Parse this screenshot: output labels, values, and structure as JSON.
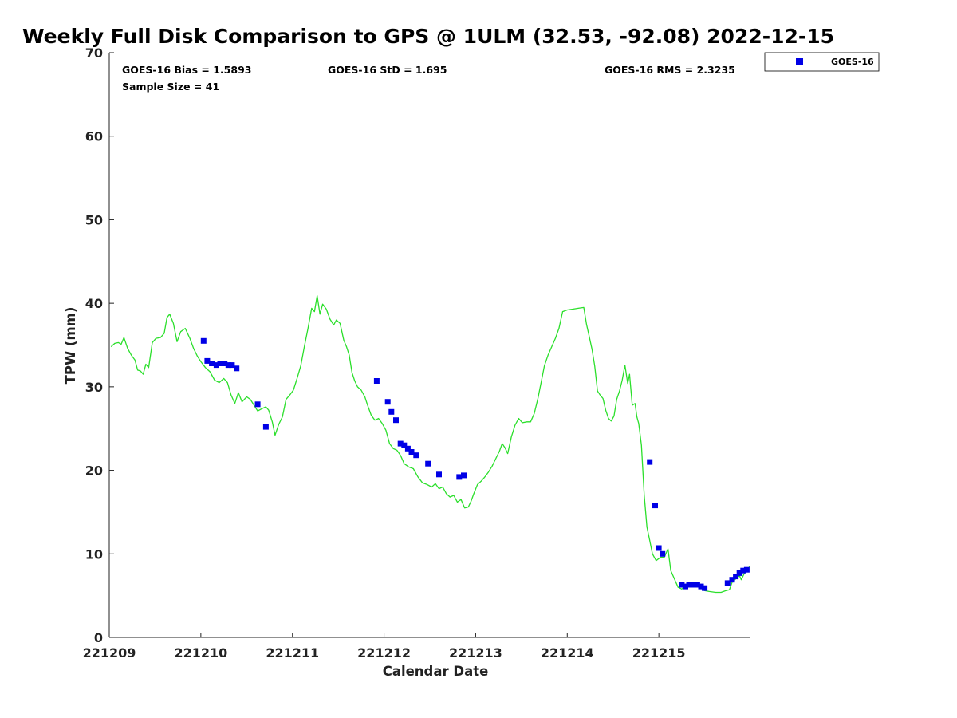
{
  "chart_data": {
    "type": "scatter",
    "title": "Weekly Full Disk Comparison to GPS @ 1ULM (32.53, -92.08) 2022-12-15",
    "xlabel": "Calendar Date",
    "ylabel": "TPW (mm)",
    "xlim": [
      0,
      7
    ],
    "ylim": [
      0,
      70
    ],
    "x_tick_values": [
      0,
      1,
      2,
      3,
      4,
      5,
      6
    ],
    "x_tick_labels": [
      "221209",
      "221210",
      "221211",
      "221212",
      "221213",
      "221214",
      "221215"
    ],
    "y_ticks": [
      0,
      10,
      20,
      30,
      40,
      50,
      60,
      70
    ],
    "grid": false,
    "legend_position": "outside-top-right",
    "stats": {
      "bias": "GOES-16 Bias = 1.5893",
      "std": "GOES-16 StD = 1.695",
      "rms": "GOES-16 RMS = 2.3235",
      "sample": "Sample Size = 41"
    },
    "series": [
      {
        "name": "GOES-16",
        "kind": "scatter",
        "color": "#0000e6",
        "points": [
          [
            1.03,
            35.5
          ],
          [
            1.07,
            33.1
          ],
          [
            1.12,
            32.8
          ],
          [
            1.17,
            32.6
          ],
          [
            1.21,
            32.8
          ],
          [
            1.26,
            32.8
          ],
          [
            1.3,
            32.6
          ],
          [
            1.34,
            32.6
          ],
          [
            1.39,
            32.2
          ],
          [
            1.62,
            27.9
          ],
          [
            1.71,
            25.2
          ],
          [
            2.92,
            30.7
          ],
          [
            3.04,
            28.2
          ],
          [
            3.08,
            27.0
          ],
          [
            3.13,
            26.0
          ],
          [
            3.18,
            23.2
          ],
          [
            3.22,
            23.0
          ],
          [
            3.26,
            22.6
          ],
          [
            3.3,
            22.2
          ],
          [
            3.35,
            21.8
          ],
          [
            3.48,
            20.8
          ],
          [
            3.6,
            19.5
          ],
          [
            3.82,
            19.2
          ],
          [
            3.87,
            19.4
          ],
          [
            5.9,
            21.0
          ],
          [
            5.96,
            15.8
          ],
          [
            6.0,
            10.7
          ],
          [
            6.04,
            10.0
          ],
          [
            6.25,
            6.3
          ],
          [
            6.29,
            6.1
          ],
          [
            6.33,
            6.3
          ],
          [
            6.38,
            6.3
          ],
          [
            6.42,
            6.3
          ],
          [
            6.46,
            6.1
          ],
          [
            6.5,
            5.9
          ],
          [
            6.75,
            6.5
          ],
          [
            6.8,
            6.9
          ],
          [
            6.84,
            7.3
          ],
          [
            6.88,
            7.7
          ],
          [
            6.92,
            8.0
          ],
          [
            6.96,
            8.1
          ]
        ]
      },
      {
        "kind": "line",
        "color": "#2bdf2b",
        "points": [
          [
            0.02,
            34.8
          ],
          [
            0.06,
            35.2
          ],
          [
            0.1,
            35.3
          ],
          [
            0.13,
            35.1
          ],
          [
            0.16,
            35.9
          ],
          [
            0.2,
            34.6
          ],
          [
            0.24,
            33.8
          ],
          [
            0.28,
            33.2
          ],
          [
            0.31,
            32.0
          ],
          [
            0.34,
            31.9
          ],
          [
            0.37,
            31.5
          ],
          [
            0.4,
            32.7
          ],
          [
            0.43,
            32.3
          ],
          [
            0.47,
            35.3
          ],
          [
            0.51,
            35.8
          ],
          [
            0.56,
            35.9
          ],
          [
            0.6,
            36.4
          ],
          [
            0.63,
            38.3
          ],
          [
            0.66,
            38.7
          ],
          [
            0.7,
            37.6
          ],
          [
            0.74,
            35.4
          ],
          [
            0.78,
            36.6
          ],
          [
            0.83,
            37.0
          ],
          [
            0.88,
            35.8
          ],
          [
            0.92,
            34.6
          ],
          [
            0.96,
            33.7
          ],
          [
            1.0,
            33.0
          ],
          [
            1.05,
            32.3
          ],
          [
            1.1,
            31.8
          ],
          [
            1.15,
            30.8
          ],
          [
            1.2,
            30.5
          ],
          [
            1.25,
            31.0
          ],
          [
            1.29,
            30.5
          ],
          [
            1.33,
            29.0
          ],
          [
            1.37,
            28.0
          ],
          [
            1.41,
            29.3
          ],
          [
            1.45,
            28.2
          ],
          [
            1.5,
            28.8
          ],
          [
            1.54,
            28.5
          ],
          [
            1.58,
            27.8
          ],
          [
            1.62,
            27.1
          ],
          [
            1.67,
            27.4
          ],
          [
            1.71,
            27.6
          ],
          [
            1.74,
            27.2
          ],
          [
            1.78,
            25.8
          ],
          [
            1.81,
            24.2
          ],
          [
            1.85,
            25.5
          ],
          [
            1.89,
            26.4
          ],
          [
            1.93,
            28.5
          ],
          [
            1.97,
            29.0
          ],
          [
            2.01,
            29.6
          ],
          [
            2.05,
            31.0
          ],
          [
            2.09,
            32.5
          ],
          [
            2.13,
            34.8
          ],
          [
            2.17,
            37.0
          ],
          [
            2.21,
            39.4
          ],
          [
            2.24,
            39.0
          ],
          [
            2.27,
            40.9
          ],
          [
            2.3,
            38.7
          ],
          [
            2.33,
            39.9
          ],
          [
            2.37,
            39.3
          ],
          [
            2.41,
            38.1
          ],
          [
            2.45,
            37.4
          ],
          [
            2.48,
            38.0
          ],
          [
            2.52,
            37.6
          ],
          [
            2.56,
            35.6
          ],
          [
            2.59,
            34.8
          ],
          [
            2.62,
            33.8
          ],
          [
            2.65,
            31.7
          ],
          [
            2.68,
            30.7
          ],
          [
            2.71,
            30.0
          ],
          [
            2.75,
            29.6
          ],
          [
            2.79,
            28.8
          ],
          [
            2.82,
            27.8
          ],
          [
            2.86,
            26.6
          ],
          [
            2.9,
            26.0
          ],
          [
            2.94,
            26.2
          ],
          [
            2.98,
            25.6
          ],
          [
            3.02,
            24.8
          ],
          [
            3.06,
            23.2
          ],
          [
            3.1,
            22.6
          ],
          [
            3.14,
            22.4
          ],
          [
            3.18,
            21.8
          ],
          [
            3.22,
            20.8
          ],
          [
            3.27,
            20.4
          ],
          [
            3.32,
            20.2
          ],
          [
            3.37,
            19.2
          ],
          [
            3.42,
            18.5
          ],
          [
            3.47,
            18.3
          ],
          [
            3.52,
            18.0
          ],
          [
            3.56,
            18.4
          ],
          [
            3.6,
            17.8
          ],
          [
            3.64,
            18.0
          ],
          [
            3.68,
            17.2
          ],
          [
            3.72,
            16.8
          ],
          [
            3.76,
            17.0
          ],
          [
            3.8,
            16.2
          ],
          [
            3.84,
            16.5
          ],
          [
            3.88,
            15.5
          ],
          [
            3.92,
            15.6
          ],
          [
            3.95,
            16.3
          ],
          [
            3.98,
            17.2
          ],
          [
            4.02,
            18.3
          ],
          [
            4.06,
            18.7
          ],
          [
            4.1,
            19.2
          ],
          [
            4.14,
            19.8
          ],
          [
            4.18,
            20.5
          ],
          [
            4.22,
            21.4
          ],
          [
            4.26,
            22.3
          ],
          [
            4.29,
            23.2
          ],
          [
            4.32,
            22.7
          ],
          [
            4.35,
            22.0
          ],
          [
            4.39,
            24.0
          ],
          [
            4.43,
            25.4
          ],
          [
            4.47,
            26.2
          ],
          [
            4.51,
            25.7
          ],
          [
            4.56,
            25.8
          ],
          [
            4.6,
            25.8
          ],
          [
            4.64,
            26.8
          ],
          [
            4.68,
            28.6
          ],
          [
            4.72,
            30.8
          ],
          [
            4.75,
            32.5
          ],
          [
            4.79,
            33.8
          ],
          [
            4.83,
            34.8
          ],
          [
            4.87,
            35.8
          ],
          [
            4.91,
            37.0
          ],
          [
            4.95,
            39.0
          ],
          [
            5.0,
            39.2
          ],
          [
            5.06,
            39.3
          ],
          [
            5.12,
            39.4
          ],
          [
            5.18,
            39.5
          ],
          [
            5.21,
            37.5
          ],
          [
            5.24,
            36.0
          ],
          [
            5.27,
            34.5
          ],
          [
            5.3,
            32.5
          ],
          [
            5.33,
            29.5
          ],
          [
            5.36,
            29.0
          ],
          [
            5.39,
            28.6
          ],
          [
            5.42,
            27.2
          ],
          [
            5.45,
            26.2
          ],
          [
            5.48,
            25.9
          ],
          [
            5.51,
            26.5
          ],
          [
            5.54,
            28.5
          ],
          [
            5.57,
            29.5
          ],
          [
            5.6,
            30.8
          ],
          [
            5.63,
            32.6
          ],
          [
            5.66,
            30.4
          ],
          [
            5.68,
            31.5
          ],
          [
            5.71,
            27.8
          ],
          [
            5.74,
            28.0
          ],
          [
            5.76,
            26.4
          ],
          [
            5.78,
            25.6
          ],
          [
            5.81,
            23.0
          ],
          [
            5.84,
            17.0
          ],
          [
            5.87,
            13.2
          ],
          [
            5.9,
            11.6
          ],
          [
            5.93,
            10.0
          ],
          [
            5.97,
            9.2
          ],
          [
            6.02,
            9.6
          ],
          [
            6.06,
            9.6
          ],
          [
            6.1,
            10.6
          ],
          [
            6.13,
            8.0
          ],
          [
            6.17,
            7.0
          ],
          [
            6.21,
            6.0
          ],
          [
            6.25,
            5.8
          ],
          [
            6.29,
            6.2
          ],
          [
            6.33,
            6.1
          ],
          [
            6.38,
            6.3
          ],
          [
            6.42,
            6.1
          ],
          [
            6.46,
            5.9
          ],
          [
            6.5,
            5.6
          ],
          [
            6.55,
            5.5
          ],
          [
            6.62,
            5.4
          ],
          [
            6.68,
            5.4
          ],
          [
            6.73,
            5.6
          ],
          [
            6.77,
            5.7
          ],
          [
            6.8,
            6.6
          ],
          [
            6.84,
            7.0
          ],
          [
            6.88,
            7.4
          ],
          [
            6.9,
            6.9
          ],
          [
            6.93,
            7.6
          ],
          [
            6.97,
            8.2
          ],
          [
            7.0,
            8.6
          ]
        ]
      }
    ]
  }
}
